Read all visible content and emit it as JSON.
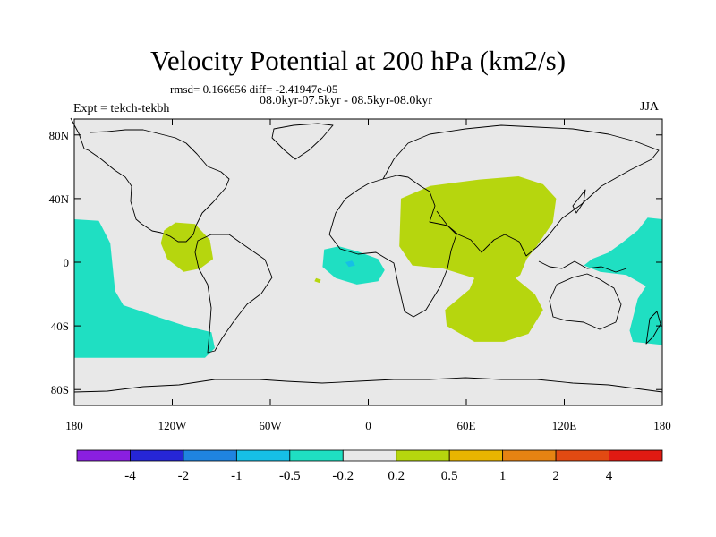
{
  "chart_data": {
    "type": "heatmap",
    "title": "Velocity Potential at 200 hPa (km2/s)",
    "stats_text": "rmsd= 0.166656 diff= -2.41947e-05",
    "period": "08.0kyr-07.5kyr - 08.5kyr-08.0kyr",
    "left_label": "Expt = tekch-tekbh",
    "right_label": "JJA",
    "x_ticks": [
      "180",
      "120W",
      "60W",
      "0",
      "60E",
      "120E",
      "180"
    ],
    "x_tick_values": [
      -180,
      -120,
      -60,
      0,
      60,
      120,
      180
    ],
    "y_ticks": [
      "80N",
      "40N",
      "0",
      "40S",
      "80S"
    ],
    "y_tick_values": [
      80,
      40,
      0,
      -40,
      -80
    ],
    "xlim": [
      -180,
      180
    ],
    "ylim": [
      -90,
      90
    ],
    "colorbar_labels": [
      "-4",
      "-2",
      "-1",
      "-0.5",
      "-0.2",
      "0.2",
      "0.5",
      "1",
      "2",
      "4"
    ],
    "colorbar_colors": [
      "#8a1fe0",
      "#2626d6",
      "#1f84e0",
      "#16bfe6",
      "#1fdfc2",
      "#e8e8e8",
      "#b6d60e",
      "#e8b500",
      "#e68312",
      "#e24a12",
      "#e01a12"
    ],
    "regions": [
      {
        "name": "east-pacific",
        "class": "negative",
        "color": "#1fdfc2",
        "lonlat": [
          [
            -180,
            27
          ],
          [
            -165,
            26
          ],
          [
            -158,
            12
          ],
          [
            -155,
            -18
          ],
          [
            -150,
            -27
          ],
          [
            -127,
            -35
          ],
          [
            -112,
            -40
          ],
          [
            -96,
            -44
          ],
          [
            -94,
            -54
          ],
          [
            -100,
            -60
          ],
          [
            -180,
            -60
          ]
        ]
      },
      {
        "name": "tropical-atlantic",
        "class": "negative",
        "color": "#1fdfc2",
        "lonlat": [
          [
            -27,
            8
          ],
          [
            -18,
            10
          ],
          [
            -7,
            7
          ],
          [
            6,
            2
          ],
          [
            10,
            -5
          ],
          [
            6,
            -12
          ],
          [
            -7,
            -14
          ],
          [
            -20,
            -10
          ],
          [
            -28,
            -3
          ]
        ]
      },
      {
        "name": "atlantic-core",
        "class": "negative",
        "color": "#16bfe6",
        "lonlat": [
          [
            -14,
            0
          ],
          [
            -10,
            1
          ],
          [
            -8,
            -2
          ],
          [
            -12,
            -3
          ]
        ]
      },
      {
        "name": "west-pacific",
        "class": "negative",
        "color": "#1fdfc2",
        "lonlat": [
          [
            180,
            27
          ],
          [
            171,
            28
          ],
          [
            165,
            20
          ],
          [
            155,
            12
          ],
          [
            147,
            6
          ],
          [
            137,
            2
          ],
          [
            132,
            -2
          ],
          [
            142,
            -6
          ],
          [
            158,
            -8
          ],
          [
            170,
            -15
          ],
          [
            165,
            -23
          ],
          [
            160,
            -43
          ],
          [
            162,
            -50
          ],
          [
            180,
            -52
          ]
        ]
      },
      {
        "name": "central-america",
        "class": "positive",
        "color": "#b6d60e",
        "lonlat": [
          [
            -125,
            20
          ],
          [
            -118,
            25
          ],
          [
            -106,
            24
          ],
          [
            -97,
            14
          ],
          [
            -95,
            2
          ],
          [
            -103,
            -4
          ],
          [
            -113,
            -6
          ],
          [
            -123,
            2
          ],
          [
            -127,
            12
          ]
        ]
      },
      {
        "name": "asia-monsoon",
        "class": "positive",
        "color": "#b6d60e",
        "lonlat": [
          [
            20,
            40
          ],
          [
            38,
            48
          ],
          [
            68,
            52
          ],
          [
            92,
            54
          ],
          [
            107,
            49
          ],
          [
            115,
            40
          ],
          [
            113,
            25
          ],
          [
            103,
            10
          ],
          [
            97,
            2
          ],
          [
            93,
            -8
          ],
          [
            90,
            -10
          ],
          [
            102,
            -20
          ],
          [
            107,
            -30
          ],
          [
            98,
            -45
          ],
          [
            83,
            -50
          ],
          [
            65,
            -50
          ],
          [
            48,
            -40
          ],
          [
            47,
            -30
          ],
          [
            62,
            -17
          ],
          [
            65,
            -10
          ],
          [
            46,
            -4
          ],
          [
            27,
            -2
          ],
          [
            19,
            10
          ]
        ]
      },
      {
        "name": "south-atlantic-speck",
        "class": "positive",
        "color": "#b6d60e",
        "lonlat": [
          [
            -32,
            -10
          ],
          [
            -29,
            -11
          ],
          [
            -30,
            -13
          ],
          [
            -33,
            -12
          ]
        ]
      }
    ]
  }
}
